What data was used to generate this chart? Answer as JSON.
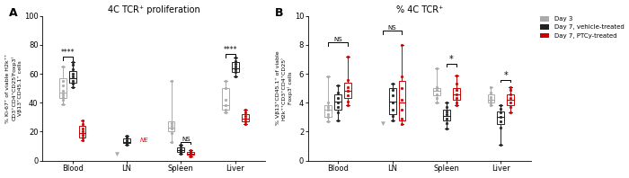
{
  "panel_A": {
    "title": "4C TCR⁺ proliferation",
    "ylabel": "% Ki-67⁺ of viable H2k⁺⁺\nCD3⁺CD4⁺CD25⁾Foxp3⁾\nVβ13⁺CD45.1⁺ cells",
    "ylim": [
      0,
      100
    ],
    "yticks": [
      0,
      20,
      40,
      60,
      80,
      100
    ],
    "groups": [
      "Blood",
      "LN",
      "Spleen",
      "Liver"
    ],
    "day3": {
      "Blood": {
        "median": 47,
        "q1": 43,
        "q3": 57,
        "wlo": 39,
        "whi": 65,
        "pts": [
          39,
          42,
          44,
          46,
          48,
          52,
          55,
          65
        ]
      },
      "LN": {
        "median": null,
        "q1": null,
        "q3": null,
        "wlo": null,
        "whi": null,
        "pts": [
          5
        ]
      },
      "Spleen": {
        "median": 23,
        "q1": 20,
        "q3": 27,
        "wlo": 13,
        "whi": 55,
        "pts": [
          13,
          19,
          22,
          24,
          26,
          55
        ]
      },
      "Liver": {
        "median": 38,
        "q1": 35,
        "q3": 50,
        "wlo": 33,
        "whi": 55,
        "pts": [
          33,
          35,
          38,
          42,
          50,
          55
        ]
      }
    },
    "day7_veh": {
      "Blood": {
        "median": 57,
        "q1": 54,
        "q3": 62,
        "wlo": 51,
        "whi": 68,
        "pts": [
          51,
          53,
          55,
          58,
          60,
          63,
          66,
          68
        ]
      },
      "LN": {
        "median": 13,
        "q1": 12,
        "q3": 15,
        "wlo": 11,
        "whi": 17,
        "pts": [
          11,
          12,
          13,
          14,
          16,
          17
        ]
      },
      "Spleen": {
        "median": 7,
        "q1": 6,
        "q3": 9,
        "wlo": 5,
        "whi": 11,
        "pts": [
          5,
          6,
          7,
          8,
          10,
          11
        ]
      },
      "Liver": {
        "median": 64,
        "q1": 61,
        "q3": 68,
        "wlo": 58,
        "whi": 71,
        "pts": [
          58,
          61,
          63,
          65,
          67,
          69,
          71
        ]
      }
    },
    "day7_ptcy": {
      "Blood": {
        "median": 19,
        "q1": 16,
        "q3": 24,
        "wlo": 14,
        "whi": 28,
        "pts": [
          14,
          16,
          18,
          20,
          22,
          25,
          28
        ]
      },
      "LN": {
        "median": null,
        "q1": null,
        "q3": null,
        "wlo": null,
        "whi": null,
        "pts": []
      },
      "Spleen": {
        "median": 5,
        "q1": 4,
        "q3": 6,
        "wlo": 3,
        "whi": 7,
        "pts": [
          3,
          4,
          5,
          6,
          7
        ]
      },
      "Liver": {
        "median": 29,
        "q1": 27,
        "q3": 32,
        "wlo": 25,
        "whi": 35,
        "pts": [
          25,
          27,
          29,
          31,
          33,
          35
        ]
      }
    }
  },
  "panel_B": {
    "title": "% 4C TCR⁺",
    "ylabel": "% Vβ13⁺CD45.1⁺ of viable\nH2k⁺⁺CD3⁺CD4⁺CD25⁾\nFoxp3⁾ cells",
    "ylim": [
      0,
      10
    ],
    "yticks": [
      0,
      2,
      4,
      6,
      8,
      10
    ],
    "groups": [
      "Blood",
      "LN",
      "Spleen",
      "Liver"
    ],
    "day3": {
      "Blood": {
        "median": 3.5,
        "q1": 3.0,
        "q3": 3.8,
        "wlo": 2.7,
        "whi": 5.8,
        "pts": [
          2.7,
          3.0,
          3.2,
          3.5,
          3.7,
          4.0,
          5.8
        ]
      },
      "LN": {
        "median": null,
        "q1": null,
        "q3": null,
        "wlo": null,
        "whi": null,
        "pts": [
          2.6
        ]
      },
      "Spleen": {
        "median": 4.8,
        "q1": 4.5,
        "q3": 5.0,
        "wlo": 4.0,
        "whi": 6.4,
        "pts": [
          4.0,
          4.3,
          4.6,
          4.9,
          5.1,
          6.4
        ]
      },
      "Liver": {
        "median": 4.2,
        "q1": 4.0,
        "q3": 4.6,
        "wlo": 3.8,
        "whi": 5.1,
        "pts": [
          3.8,
          4.0,
          4.2,
          4.4,
          4.7,
          5.1
        ]
      }
    },
    "day7_veh": {
      "Blood": {
        "median": 4.1,
        "q1": 3.5,
        "q3": 4.6,
        "wlo": 2.8,
        "whi": 5.2,
        "pts": [
          2.8,
          3.3,
          3.7,
          4.0,
          4.3,
          4.7,
          5.2
        ]
      },
      "LN": {
        "median": 4.1,
        "q1": 3.2,
        "q3": 5.0,
        "wlo": 2.8,
        "whi": 5.3,
        "pts": [
          2.8,
          3.1,
          3.5,
          4.0,
          4.5,
          4.9,
          5.3
        ]
      },
      "Spleen": {
        "median": 3.1,
        "q1": 2.8,
        "q3": 3.5,
        "wlo": 2.2,
        "whi": 4.0,
        "pts": [
          2.2,
          2.6,
          2.9,
          3.2,
          3.4,
          3.7,
          4.0
        ]
      },
      "Liver": {
        "median": 3.0,
        "q1": 2.5,
        "q3": 3.4,
        "wlo": 1.1,
        "whi": 3.8,
        "pts": [
          1.1,
          2.3,
          2.7,
          3.0,
          3.3,
          3.6,
          3.8
        ]
      }
    },
    "day7_ptcy": {
      "Blood": {
        "median": 4.8,
        "q1": 4.3,
        "q3": 5.4,
        "wlo": 3.8,
        "whi": 7.2,
        "pts": [
          3.8,
          4.1,
          4.5,
          4.8,
          5.1,
          5.6,
          7.2
        ]
      },
      "LN": {
        "median": 4.0,
        "q1": 2.8,
        "q3": 5.5,
        "wlo": 2.5,
        "whi": 8.0,
        "pts": [
          2.5,
          2.9,
          3.5,
          4.2,
          5.0,
          5.8,
          8.0
        ]
      },
      "Spleen": {
        "median": 4.6,
        "q1": 4.2,
        "q3": 5.0,
        "wlo": 3.8,
        "whi": 5.9,
        "pts": [
          3.8,
          4.0,
          4.3,
          4.6,
          4.9,
          5.3,
          5.9
        ]
      },
      "Liver": {
        "median": 4.2,
        "q1": 3.8,
        "q3": 4.6,
        "wlo": 3.3,
        "whi": 5.1,
        "pts": [
          3.3,
          3.7,
          4.0,
          4.3,
          4.6,
          4.9,
          5.1
        ]
      }
    }
  },
  "colors": {
    "day3": "#aaaaaa",
    "day7_veh": "#222222",
    "day7_ptcy": "#cc0000"
  }
}
